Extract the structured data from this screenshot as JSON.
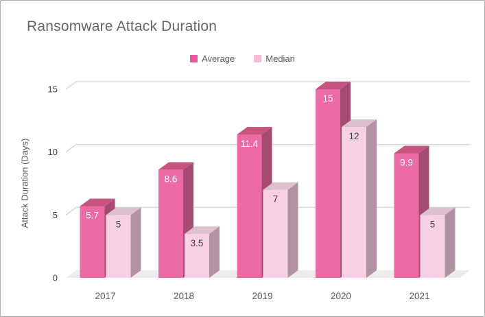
{
  "window": {
    "background": "#ffffff",
    "border_color": "#aeaeae"
  },
  "chart_data": {
    "type": "bar",
    "projection": "3d-column",
    "title": "Ransomware Attack Duration",
    "categories": [
      "2017",
      "2018",
      "2019",
      "2020",
      "2021"
    ],
    "series": [
      {
        "name": "Average",
        "values": [
          5.7,
          8.6,
          11.4,
          15,
          9.9
        ],
        "color_front": "#EC6BA4",
        "color_top": "#C75480",
        "color_side": "#A54B71",
        "label_color": "#ffffff",
        "legend_swatch": "#E8579B"
      },
      {
        "name": "Median",
        "values": [
          5,
          3.5,
          7,
          12,
          5
        ],
        "color_front": "#F8D0E3",
        "color_top": "#DCC0CE",
        "color_side": "#B292A3",
        "label_color": "#3f3f3f",
        "legend_swatch": "#F6BCD8"
      }
    ],
    "xlabel": "",
    "ylabel": "Attack Duration (Days)",
    "yticks": [
      0,
      5,
      10,
      15
    ],
    "ylim": [
      0,
      15
    ],
    "grid": true,
    "legend_position": "top-center",
    "data_labels": true,
    "colors": {
      "gridline": "#d9d9d9",
      "floor": "#ececec",
      "tick_text": "#404040",
      "category_text": "#595959",
      "title_text": "#666666",
      "legend_text": "#595959",
      "axis_title_text": "#595959"
    }
  }
}
